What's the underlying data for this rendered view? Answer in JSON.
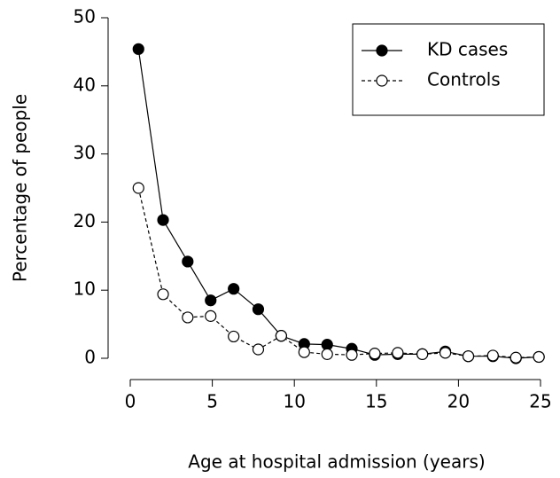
{
  "chart_data": {
    "type": "line",
    "xlabel": "Age at hospital admission (years)",
    "ylabel": "Percentage of people",
    "x": [
      0.5,
      2.0,
      3.5,
      4.9,
      6.3,
      7.8,
      9.2,
      10.6,
      12.0,
      13.5,
      14.9,
      16.3,
      17.8,
      19.2,
      20.6,
      22.1,
      23.5,
      24.9
    ],
    "series": [
      {
        "name": "KD cases",
        "color": "#000000",
        "line_style": "solid",
        "marker": "filled",
        "values": [
          45.4,
          20.3,
          14.2,
          8.5,
          10.2,
          7.2,
          3.3,
          2.1,
          2.0,
          1.4,
          0.5,
          0.6,
          0.6,
          1.0,
          0.3,
          0.3,
          0.0,
          0.2
        ]
      },
      {
        "name": "Controls",
        "color": "#000000",
        "line_style": "dashed",
        "marker": "open",
        "values": [
          25.0,
          9.4,
          6.0,
          6.2,
          3.2,
          1.3,
          3.3,
          0.9,
          0.6,
          0.5,
          0.7,
          0.8,
          0.6,
          0.8,
          0.3,
          0.4,
          0.1,
          0.2
        ]
      }
    ],
    "xlim": [
      0,
      25
    ],
    "xticks": [
      0,
      5,
      10,
      15,
      20,
      25
    ],
    "ylim": [
      0,
      50
    ],
    "yticks": [
      0,
      10,
      20,
      30,
      40,
      50
    ],
    "legend": "upper right"
  }
}
